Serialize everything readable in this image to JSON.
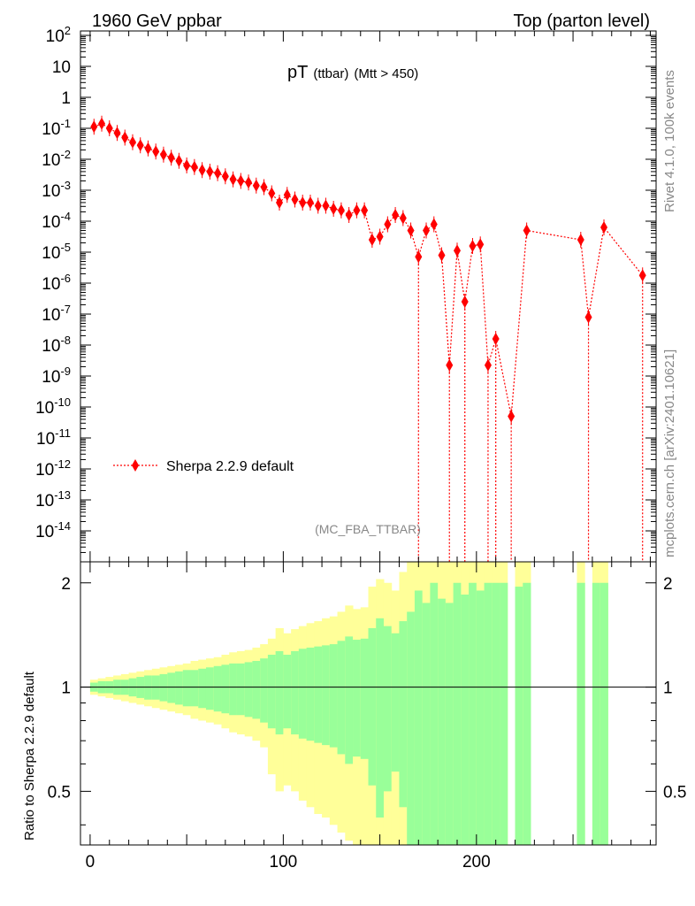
{
  "header": {
    "left": "1960 GeV ppbar",
    "right": "Top (parton level)"
  },
  "title": {
    "main": "pT",
    "sub": "(ttbar)",
    "cut": "(Mtt > 450)"
  },
  "side_labels": {
    "rivet": "Rivet 4.1.0,  100k events",
    "mcplots": "mcplots.cern.ch [arXiv:2401.10621]"
  },
  "analysis_tag": "(MC_FBA_TTBAR)",
  "legend": {
    "label": "Sherpa 2.2.9 default"
  },
  "ratio_ylabel": "Ratio to Sherpa 2.2.9 default",
  "colors": {
    "marker": "#ff0000",
    "band_inner": "#99ff99",
    "band_outer": "#ffff99",
    "axis": "#000000",
    "label_grey": "#888888"
  },
  "chart_data": {
    "type": "scatter",
    "title": "pT (ttbar) (Mtt > 450)",
    "xlabel": "",
    "ylabel": "",
    "xlim": [
      -5,
      293
    ],
    "ylim_log10": [
      -15,
      2
    ],
    "yscale": "log",
    "x_ticks": [
      0,
      100,
      200
    ],
    "y_tick_labels": [
      "10^2",
      "10",
      "1",
      "10^-1",
      "10^-2",
      "10^-3",
      "10^-4",
      "10^-5",
      "10^-6",
      "10^-7",
      "10^-8",
      "10^-9",
      "10^-10",
      "10^-11",
      "10^-12",
      "10^-13",
      "10^-14"
    ],
    "series": [
      {
        "name": "Sherpa 2.2.9 default",
        "x": [
          2,
          6,
          10,
          14,
          18,
          22,
          26,
          30,
          34,
          38,
          42,
          46,
          50,
          54,
          58,
          62,
          66,
          70,
          74,
          78,
          82,
          86,
          90,
          94,
          98,
          102,
          106,
          110,
          114,
          118,
          122,
          126,
          130,
          134,
          138,
          142,
          146,
          150,
          154,
          158,
          162,
          166,
          170,
          174,
          178,
          182,
          186,
          190,
          194,
          198,
          202,
          206,
          210,
          218,
          226,
          254,
          258,
          266,
          286
        ],
        "y_log10": [
          -0.95,
          -0.85,
          -1.0,
          -1.15,
          -1.3,
          -1.45,
          -1.55,
          -1.65,
          -1.75,
          -1.85,
          -1.95,
          -2.05,
          -2.2,
          -2.25,
          -2.35,
          -2.4,
          -2.45,
          -2.55,
          -2.65,
          -2.7,
          -2.75,
          -2.85,
          -2.9,
          -3.1,
          -3.4,
          -3.15,
          -3.3,
          -3.4,
          -3.4,
          -3.5,
          -3.5,
          -3.6,
          -3.65,
          -3.8,
          -3.65,
          -3.65,
          -4.6,
          -4.5,
          -4.1,
          -3.8,
          -3.9,
          -4.3,
          -5.15,
          -4.3,
          -4.1,
          -5.1,
          -8.65,
          -4.95,
          -6.6,
          -4.8,
          -4.75,
          -8.65,
          -7.8,
          -10.3,
          -4.3,
          -4.6,
          -7.1,
          -4.2,
          -5.75
        ],
        "dropout_x": [
          170,
          186,
          194,
          206,
          210,
          218,
          258,
          286
        ]
      }
    ],
    "ratio_panel": {
      "ylabel": "Ratio to Sherpa 2.2.9 default",
      "y_ticks": [
        0.5,
        1,
        2
      ],
      "ylim": [
        0.35,
        2.3
      ],
      "yscale": "log",
      "reference_line": 1,
      "band_x": [
        0,
        4,
        8,
        12,
        16,
        20,
        24,
        28,
        32,
        36,
        40,
        44,
        48,
        52,
        56,
        60,
        64,
        68,
        72,
        76,
        80,
        84,
        88,
        92,
        96,
        100,
        104,
        108,
        112,
        116,
        120,
        124,
        128,
        132,
        136,
        140,
        144,
        148,
        152,
        156,
        160,
        164,
        168,
        172,
        176,
        180,
        184,
        188,
        192,
        196,
        200,
        204,
        208,
        212,
        220,
        224,
        252,
        260,
        264,
        284
      ],
      "band_inner_up": [
        1.03,
        1.04,
        1.04,
        1.05,
        1.05,
        1.06,
        1.07,
        1.08,
        1.08,
        1.09,
        1.1,
        1.11,
        1.12,
        1.12,
        1.13,
        1.14,
        1.15,
        1.16,
        1.17,
        1.17,
        1.18,
        1.19,
        1.21,
        1.24,
        1.27,
        1.24,
        1.27,
        1.29,
        1.3,
        1.31,
        1.32,
        1.33,
        1.36,
        1.4,
        1.37,
        1.38,
        1.48,
        1.58,
        1.5,
        1.43,
        1.55,
        1.65,
        1.9,
        1.75,
        2.0,
        1.8,
        1.75,
        2.0,
        1.85,
        2.0,
        1.9,
        2.0,
        2.0,
        2.0,
        1.95,
        2.0,
        2.0,
        2.0,
        2.0
      ],
      "band_outer_up": [
        1.05,
        1.06,
        1.07,
        1.08,
        1.09,
        1.1,
        1.11,
        1.12,
        1.13,
        1.14,
        1.15,
        1.16,
        1.17,
        1.19,
        1.2,
        1.21,
        1.22,
        1.24,
        1.26,
        1.27,
        1.28,
        1.3,
        1.33,
        1.38,
        1.48,
        1.43,
        1.47,
        1.5,
        1.53,
        1.55,
        1.58,
        1.6,
        1.65,
        1.72,
        1.68,
        1.7,
        1.95,
        2.05,
        2.0,
        1.9,
        2.15,
        2.3,
        2.3,
        2.3,
        2.3,
        2.3,
        2.3,
        2.3,
        2.3,
        2.3,
        2.3,
        2.3,
        2.3,
        2.3,
        2.3,
        2.3,
        2.3,
        2.3,
        2.3
      ],
      "band_inner_down": [
        0.97,
        0.96,
        0.96,
        0.95,
        0.95,
        0.94,
        0.93,
        0.92,
        0.92,
        0.91,
        0.9,
        0.89,
        0.88,
        0.88,
        0.87,
        0.86,
        0.85,
        0.84,
        0.83,
        0.83,
        0.82,
        0.81,
        0.79,
        0.76,
        0.73,
        0.76,
        0.73,
        0.71,
        0.7,
        0.69,
        0.68,
        0.67,
        0.64,
        0.6,
        0.63,
        0.62,
        0.52,
        0.42,
        0.5,
        0.57,
        0.45,
        0.35,
        0.35,
        0.35,
        0.35,
        0.35,
        0.35,
        0.35,
        0.35,
        0.35,
        0.35,
        0.35,
        0.35,
        0.35,
        0.35,
        0.35,
        0.35,
        0.35,
        0.35
      ],
      "band_outer_down": [
        0.95,
        0.94,
        0.93,
        0.92,
        0.91,
        0.9,
        0.89,
        0.88,
        0.87,
        0.86,
        0.85,
        0.84,
        0.83,
        0.81,
        0.8,
        0.79,
        0.78,
        0.76,
        0.74,
        0.73,
        0.72,
        0.7,
        0.67,
        0.56,
        0.5,
        0.52,
        0.5,
        0.47,
        0.45,
        0.43,
        0.42,
        0.4,
        0.38,
        0.36,
        0.35,
        0.35,
        0.35,
        0.35,
        0.35,
        0.35,
        0.35,
        0.35,
        0.35,
        0.35,
        0.35,
        0.35,
        0.35,
        0.35,
        0.35,
        0.35,
        0.35,
        0.35,
        0.35,
        0.35,
        0.35,
        0.35,
        0.35,
        0.35,
        0.35
      ]
    }
  }
}
